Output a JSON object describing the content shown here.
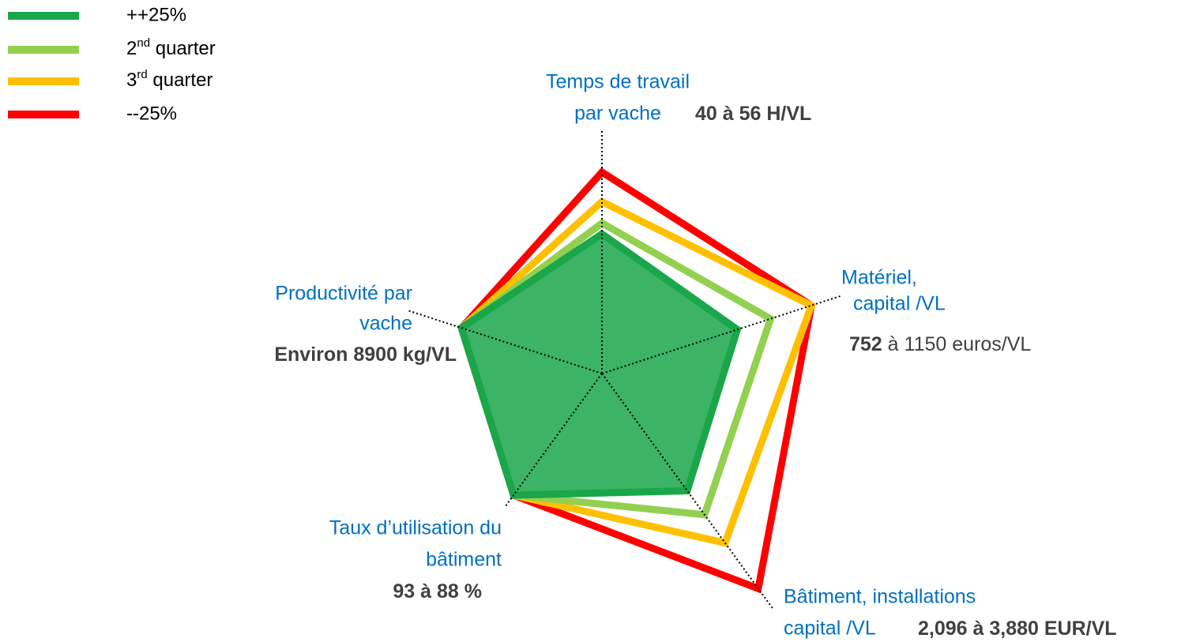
{
  "chart_data": {
    "type": "radar",
    "categories": [
      [
        "Temps de travail",
        "par vache"
      ],
      [
        "Matériel,",
        "capital /VL"
      ],
      [
        "Bâtiment, installations",
        "capital /VL"
      ],
      [
        "Taux d’utilisation du",
        "bâtiment"
      ],
      [
        "Productivité par",
        "vache"
      ]
    ],
    "annotations": [
      [
        {
          "text": "40 à 56 H/VL",
          "weight": "bold"
        }
      ],
      [
        {
          "text": "752",
          "weight": "bold"
        },
        {
          "text": " à 1150 euros/VL",
          "weight": "normal"
        }
      ],
      [
        {
          "text": "2,096 à 3,880 EUR/VL",
          "weight": "bold"
        }
      ],
      [
        {
          "text": "93 à 88 %",
          "weight": "bold"
        }
      ],
      [
        {
          "text": "Environ 8900 kg/VL",
          "weight": "bold"
        }
      ]
    ],
    "ylim": [
      0,
      100
    ],
    "series": [
      {
        "name": "++25%",
        "color": "#1aa64a",
        "filled": true,
        "values": [
          52,
          53,
          54,
          56,
          55
        ]
      },
      {
        "name": "2nd quarter",
        "color": "#92d050",
        "values": [
          56,
          66,
          65,
          56,
          55
        ]
      },
      {
        "name": "3rd quarter",
        "color": "#ffc000",
        "values": [
          64,
          82,
          78,
          56,
          55
        ]
      },
      {
        "name": "--25%",
        "color": "#ff0000",
        "values": [
          75,
          82,
          99,
          56,
          55
        ]
      }
    ]
  }
}
